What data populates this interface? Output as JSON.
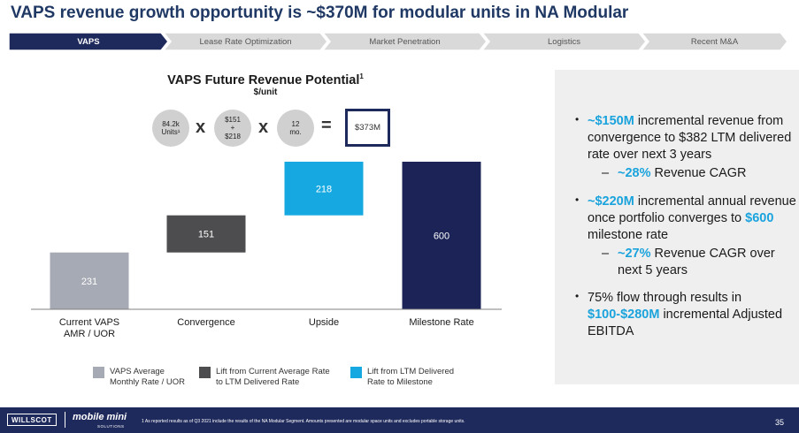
{
  "title": "VAPS revenue growth opportunity is ~$370M for modular units in NA Modular",
  "nav": {
    "items": [
      "VAPS",
      "Lease Rate Optimization",
      "Market Penetration",
      "Logistics",
      "Recent M&A"
    ],
    "active_index": 0
  },
  "formula": {
    "units": [
      "84.2k",
      "Units¹"
    ],
    "rate": [
      "$151",
      "+",
      "$218"
    ],
    "months": [
      "12",
      "mo."
    ],
    "multiply_1": "x",
    "multiply_2": "x",
    "equals": "=",
    "result": "$373M"
  },
  "chart_data": {
    "type": "bar",
    "title": "VAPS Future Revenue Potential",
    "title_sup": "1",
    "subtitle": "$/unit",
    "categories": [
      "Current VAPS\nAMR / UOR",
      "Convergence",
      "Upside",
      "Milestone Rate"
    ],
    "bars": [
      {
        "category": "Current VAPS AMR / UOR",
        "label_lines": [
          "Current VAPS",
          "AMR / UOR"
        ],
        "value": 231,
        "base": 0,
        "series": 0
      },
      {
        "category": "Convergence",
        "label_lines": [
          "Convergence"
        ],
        "value": 151,
        "base": 231,
        "series": 1
      },
      {
        "category": "Upside",
        "label_lines": [
          "Upside"
        ],
        "value": 218,
        "base": 382,
        "series": 2
      },
      {
        "category": "Milestone Rate",
        "label_lines": [
          "Milestone Rate"
        ],
        "value": 600,
        "base": 0,
        "series": 3
      }
    ],
    "ylim": [
      0,
      600
    ],
    "grid": false,
    "colors": [
      "#a6aab4",
      "#4d4d4f",
      "#16a9e1",
      "#1c2457"
    ],
    "legend": [
      {
        "label_lines": [
          "VAPS Average",
          "Monthly Rate / UOR"
        ],
        "color": "#a6aab4"
      },
      {
        "label_lines": [
          "Lift from Current Average Rate",
          "to LTM Delivered Rate"
        ],
        "color": "#4d4d4f"
      },
      {
        "label_lines": [
          "Lift from LTM Delivered",
          "Rate to Milestone"
        ],
        "color": "#16a9e1"
      }
    ]
  },
  "bullets": [
    {
      "parts": [
        {
          "t": "~$150M",
          "hl": true
        },
        {
          "t": " incremental revenue from convergence to $382 LTM delivered rate over next 3 years",
          "hl": false
        }
      ],
      "subs": [
        [
          {
            "t": "~28%",
            "hl": true
          },
          {
            "t": " Revenue CAGR",
            "hl": false
          }
        ]
      ]
    },
    {
      "parts": [
        {
          "t": "~$220M",
          "hl": true
        },
        {
          "t": " incremental annual revenue once portfolio converges to ",
          "hl": false
        },
        {
          "t": "$600",
          "hl": true
        },
        {
          "t": " milestone rate",
          "hl": false
        }
      ],
      "subs": [
        [
          {
            "t": "~27%",
            "hl": true
          },
          {
            "t": " Revenue CAGR over next 5 years",
            "hl": false
          }
        ]
      ]
    },
    {
      "parts": [
        {
          "t": "75% flow through results in ",
          "hl": false
        },
        {
          "t": "$100-$280M",
          "hl": true
        },
        {
          "t": " incremental Adjusted EBITDA",
          "hl": false
        }
      ],
      "subs": []
    }
  ],
  "footer": {
    "logo_willscot": "WILLSCOT",
    "logo_mobilemini": "mobile mini",
    "logo_mobilemini_sub": "SOLUTIONS",
    "footnote": "1 As reported results as of Q3 2021 include the results of the NA Modular Segment. Amounts presented are modular space units and excludes portable storage units.",
    "page_number": "35"
  },
  "colors": {
    "title": "#1f3864",
    "nav_active": "#1f2a5c",
    "nav_inactive": "#d9d9d9",
    "highlight": "#1aa3dc",
    "footer_bg": "#1f2a5c"
  }
}
